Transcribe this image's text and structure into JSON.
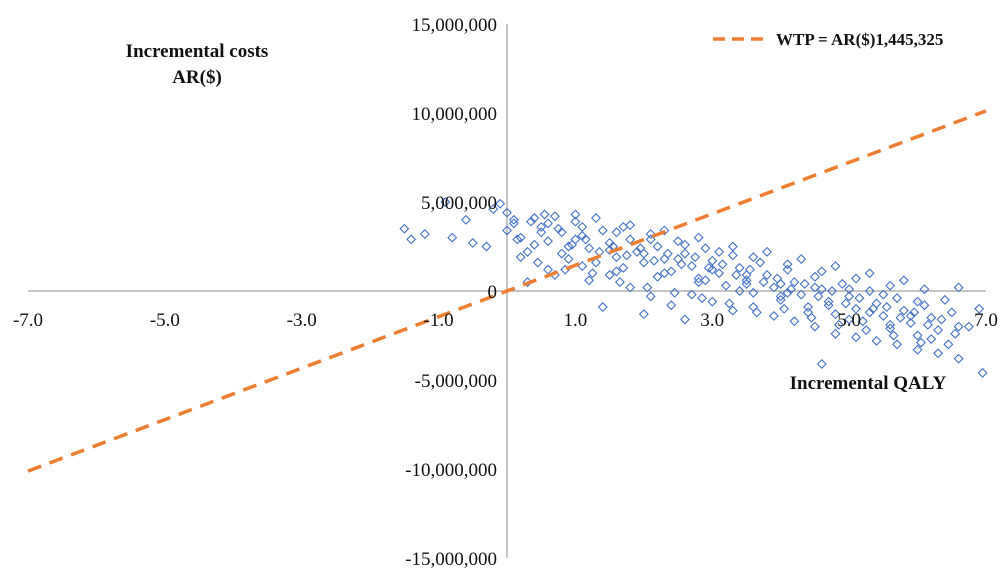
{
  "chart_data": {
    "type": "scatter",
    "title": "",
    "xlabel": "Incremental QALY",
    "ylabel_lines": [
      "Incremental costs",
      "AR($)"
    ],
    "xlim": [
      -7,
      7
    ],
    "ylim": [
      -15000000,
      15000000
    ],
    "x_ticks": [
      -7,
      -5,
      -3,
      -1,
      1,
      3,
      5,
      7
    ],
    "x_tick_labels": [
      "-7.0",
      "-5.0",
      "-3.0",
      "-1.0",
      "1.0",
      "3.0",
      "5.0",
      "7.0"
    ],
    "y_ticks": [
      15000000,
      10000000,
      5000000,
      0,
      -5000000,
      -10000000,
      -15000000
    ],
    "y_tick_labels": [
      "15,000,000",
      "10,000,000",
      "5,000,000",
      "0",
      "-5,000,000",
      "-10,000,000",
      "-15,000,000"
    ],
    "grid": false,
    "legend_position": "top-right",
    "colors": {
      "points": "#4472c4",
      "wtp_line": "#ed7d31"
    },
    "wtp_line": {
      "label": "WTP = AR($)1,445,325",
      "slope": 1445325,
      "x_range": [
        -7,
        7
      ]
    },
    "series": [
      {
        "marker": "diamond-outline",
        "points": [
          [
            -0.9,
            5.0
          ],
          [
            -1.5,
            3.5
          ],
          [
            -1.4,
            2.9
          ],
          [
            -1.2,
            3.2
          ],
          [
            -0.8,
            3.0
          ],
          [
            -0.5,
            2.7
          ],
          [
            -0.3,
            2.5
          ],
          [
            -0.6,
            4.0
          ],
          [
            -0.2,
            4.6
          ],
          [
            -0.1,
            4.9
          ],
          [
            0.0,
            4.4
          ],
          [
            0.1,
            3.8
          ],
          [
            0.2,
            3.0
          ],
          [
            0.3,
            2.2
          ],
          [
            0.4,
            4.1
          ],
          [
            0.5,
            3.6
          ],
          [
            0.6,
            2.8
          ],
          [
            0.7,
            4.2
          ],
          [
            0.8,
            3.3
          ],
          [
            0.9,
            2.5
          ],
          [
            1.0,
            3.9
          ],
          [
            1.1,
            3.1
          ],
          [
            1.2,
            2.4
          ],
          [
            1.3,
            4.1
          ],
          [
            1.4,
            3.4
          ],
          [
            1.5,
            2.7
          ],
          [
            1.6,
            1.9
          ],
          [
            1.7,
            3.6
          ],
          [
            1.8,
            2.9
          ],
          [
            1.9,
            2.2
          ],
          [
            2.0,
            1.6
          ],
          [
            2.1,
            3.2
          ],
          [
            2.2,
            2.5
          ],
          [
            2.3,
            1.8
          ],
          [
            2.4,
            1.1
          ],
          [
            2.5,
            2.8
          ],
          [
            2.6,
            2.1
          ],
          [
            2.7,
            1.4
          ],
          [
            2.8,
            0.7
          ],
          [
            2.9,
            2.4
          ],
          [
            3.0,
            1.7
          ],
          [
            3.1,
            1.0
          ],
          [
            3.2,
            0.3
          ],
          [
            3.3,
            2.0
          ],
          [
            3.4,
            1.3
          ],
          [
            3.5,
            0.6
          ],
          [
            3.6,
            -0.1
          ],
          [
            3.7,
            1.6
          ],
          [
            3.8,
            0.9
          ],
          [
            3.9,
            0.2
          ],
          [
            4.0,
            -0.5
          ],
          [
            4.1,
            1.2
          ],
          [
            4.2,
            0.5
          ],
          [
            4.3,
            -0.2
          ],
          [
            4.4,
            -0.9
          ],
          [
            4.5,
            0.8
          ],
          [
            4.6,
            0.1
          ],
          [
            4.7,
            -0.6
          ],
          [
            4.8,
            -1.3
          ],
          [
            4.9,
            0.4
          ],
          [
            5.0,
            -0.3
          ],
          [
            5.1,
            -1.0
          ],
          [
            5.2,
            -1.7
          ],
          [
            5.3,
            0.0
          ],
          [
            5.4,
            -0.7
          ],
          [
            5.5,
            -1.4
          ],
          [
            5.6,
            -2.1
          ],
          [
            5.7,
            -0.4
          ],
          [
            5.8,
            -1.1
          ],
          [
            5.9,
            -1.8
          ],
          [
            6.0,
            -2.5
          ],
          [
            6.1,
            -0.8
          ],
          [
            6.2,
            -1.5
          ],
          [
            6.3,
            -2.2
          ],
          [
            6.5,
            -1.2
          ],
          [
            6.6,
            -2.0
          ],
          [
            6.9,
            -1.0
          ],
          [
            0.3,
            0.5
          ],
          [
            0.6,
            1.2
          ],
          [
            0.9,
            1.8
          ],
          [
            1.2,
            0.6
          ],
          [
            1.5,
            0.9
          ],
          [
            1.8,
            0.2
          ],
          [
            2.1,
            -0.3
          ],
          [
            2.4,
            -0.8
          ],
          [
            2.7,
            -0.2
          ],
          [
            3.0,
            -0.6
          ],
          [
            3.3,
            -1.1
          ],
          [
            3.6,
            -0.9
          ],
          [
            3.9,
            -1.4
          ],
          [
            4.2,
            -1.7
          ],
          [
            4.5,
            -2.0
          ],
          [
            4.8,
            -2.4
          ],
          [
            5.1,
            -2.6
          ],
          [
            5.4,
            -2.8
          ],
          [
            5.7,
            -3.0
          ],
          [
            6.0,
            -3.3
          ],
          [
            6.3,
            -3.5
          ],
          [
            4.6,
            -4.1
          ],
          [
            6.6,
            -3.8
          ],
          [
            1.4,
            -0.9
          ],
          [
            2.0,
            -1.3
          ],
          [
            2.6,
            -1.6
          ],
          [
            1.0,
            4.3
          ],
          [
            0.2,
            1.9
          ],
          [
            0.7,
            0.9
          ],
          [
            1.1,
            1.4
          ],
          [
            1.6,
            1.1
          ],
          [
            2.2,
            0.8
          ],
          [
            2.8,
            0.5
          ],
          [
            3.4,
            0.0
          ],
          [
            4.0,
            -0.3
          ],
          [
            4.4,
            -1.2
          ],
          [
            5.0,
            -1.6
          ],
          [
            5.6,
            -1.9
          ],
          [
            6.2,
            -2.7
          ],
          [
            0.4,
            2.6
          ],
          [
            0.8,
            2.1
          ],
          [
            1.3,
            1.6
          ],
          [
            1.7,
            1.3
          ],
          [
            2.3,
            1.0
          ],
          [
            2.9,
            0.6
          ],
          [
            3.5,
            0.4
          ],
          [
            4.1,
            -0.1
          ],
          [
            4.7,
            -0.8
          ],
          [
            5.3,
            -1.2
          ],
          [
            5.9,
            -1.4
          ],
          [
            0.5,
            3.3
          ],
          [
            1.0,
            2.9
          ],
          [
            1.5,
            2.3
          ],
          [
            2.0,
            2.1
          ],
          [
            2.5,
            1.8
          ],
          [
            3.0,
            1.2
          ],
          [
            3.5,
            0.9
          ],
          [
            4.0,
            0.4
          ],
          [
            4.5,
            0.2
          ],
          [
            5.0,
            0.1
          ],
          [
            5.5,
            -0.2
          ],
          [
            6.0,
            -0.6
          ],
          [
            6.4,
            -0.5
          ],
          [
            0.1,
            4.0
          ],
          [
            0.6,
            3.8
          ],
          [
            1.1,
            3.6
          ],
          [
            1.6,
            3.3
          ],
          [
            2.1,
            2.9
          ],
          [
            2.6,
            2.6
          ],
          [
            3.1,
            2.2
          ],
          [
            3.6,
            1.9
          ],
          [
            4.1,
            1.5
          ],
          [
            4.6,
            1.1
          ],
          [
            5.1,
            0.7
          ],
          [
            5.6,
            0.3
          ],
          [
            6.1,
            0.1
          ],
          [
            0.0,
            3.4
          ],
          [
            0.35,
            3.9
          ],
          [
            0.55,
            4.3
          ],
          [
            0.75,
            3.5
          ],
          [
            0.95,
            2.6
          ],
          [
            1.15,
            2.9
          ],
          [
            1.35,
            2.2
          ],
          [
            1.55,
            2.5
          ],
          [
            1.75,
            2.0
          ],
          [
            1.95,
            2.4
          ],
          [
            2.15,
            1.7
          ],
          [
            2.35,
            2.1
          ],
          [
            2.55,
            1.5
          ],
          [
            2.75,
            1.9
          ],
          [
            2.95,
            1.3
          ],
          [
            3.15,
            1.5
          ],
          [
            3.35,
            0.9
          ],
          [
            3.55,
            1.2
          ],
          [
            3.75,
            0.5
          ],
          [
            3.95,
            0.7
          ],
          [
            4.15,
            0.1
          ],
          [
            4.35,
            0.4
          ],
          [
            4.55,
            -0.3
          ],
          [
            4.75,
            0.0
          ],
          [
            4.95,
            -0.7
          ],
          [
            5.15,
            -0.4
          ],
          [
            5.35,
            -1.0
          ],
          [
            5.55,
            -0.9
          ],
          [
            5.75,
            -1.5
          ],
          [
            5.95,
            -1.2
          ],
          [
            6.15,
            -1.9
          ],
          [
            6.35,
            -1.6
          ],
          [
            6.55,
            -2.4
          ],
          [
            6.75,
            -2.0
          ],
          [
            6.95,
            -4.6
          ],
          [
            0.15,
            2.9
          ],
          [
            0.45,
            1.6
          ],
          [
            0.85,
            1.2
          ],
          [
            1.25,
            1.0
          ],
          [
            1.65,
            0.5
          ],
          [
            2.05,
            0.2
          ],
          [
            2.45,
            -0.1
          ],
          [
            2.85,
            -0.4
          ],
          [
            3.25,
            -0.7
          ],
          [
            3.65,
            -1.2
          ],
          [
            4.05,
            -1.0
          ],
          [
            4.45,
            -1.5
          ],
          [
            4.85,
            -1.9
          ],
          [
            5.25,
            -2.2
          ],
          [
            5.65,
            -2.5
          ],
          [
            6.05,
            -2.9
          ],
          [
            6.45,
            -3.0
          ],
          [
            1.8,
            3.7
          ],
          [
            2.3,
            3.4
          ],
          [
            2.8,
            3.0
          ],
          [
            3.3,
            2.5
          ],
          [
            3.8,
            2.2
          ],
          [
            4.3,
            1.8
          ],
          [
            4.8,
            1.4
          ],
          [
            5.3,
            1.0
          ],
          [
            5.8,
            0.6
          ],
          [
            6.6,
            0.2
          ]
        ]
      }
    ],
    "y_values_scale": 1000000
  }
}
